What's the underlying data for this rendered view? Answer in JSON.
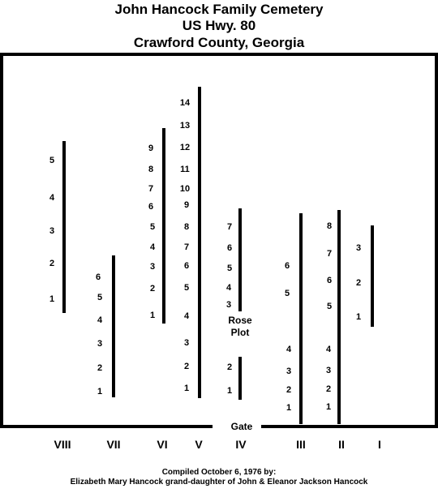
{
  "title": {
    "line1": "John Hancock Family Cemetery",
    "line2": "US Hwy. 80",
    "line3": "Crawford County, Georgia"
  },
  "rows": [
    {
      "id": "VIII",
      "label": "VIII",
      "graves": [
        "1",
        "2",
        "3",
        "4",
        "5"
      ]
    },
    {
      "id": "VII",
      "label": "VII",
      "graves": [
        "1",
        "2",
        "3",
        "4",
        "5",
        "6"
      ]
    },
    {
      "id": "VI",
      "label": "VI",
      "graves": [
        "1",
        "2",
        "3",
        "4",
        "5",
        "6",
        "7",
        "8",
        "9"
      ]
    },
    {
      "id": "V",
      "label": "V",
      "graves": [
        "1",
        "2",
        "3",
        "4",
        "5",
        "6",
        "7",
        "8",
        "9",
        "10",
        "11",
        "12",
        "13",
        "14"
      ]
    },
    {
      "id": "IV",
      "label": "IV",
      "graves": [
        "1",
        "2",
        "3",
        "4",
        "5",
        "6",
        "7"
      ]
    },
    {
      "id": "III",
      "label": "III",
      "graves": [
        "1",
        "2",
        "3",
        "4",
        "5",
        "6"
      ]
    },
    {
      "id": "II",
      "label": "II",
      "graves": [
        "1",
        "2",
        "3",
        "4",
        "5",
        "6",
        "7",
        "8"
      ]
    },
    {
      "id": "I",
      "label": "I",
      "graves": [
        "1",
        "2",
        "3"
      ]
    }
  ],
  "rose_plot": {
    "line1": "Rose",
    "line2": "Plot"
  },
  "gate_label": "Gate",
  "footer": {
    "line1": "Compiled October 6, 1976 by:",
    "line2": "Elizabeth Mary Hancock grand-daughter of John & Eleanor Jackson Hancock"
  }
}
